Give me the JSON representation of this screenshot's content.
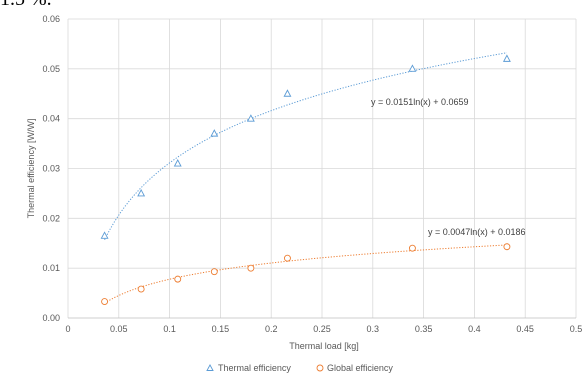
{
  "caption_fragment": "1.5 %.",
  "chart_data": {
    "type": "scatter",
    "title": "",
    "xlabel": "Thermal load [kg]",
    "ylabel": "Thermal efficiency [W/W]",
    "xlim": [
      0,
      0.5
    ],
    "ylim": [
      0,
      0.06
    ],
    "x_ticks": [
      "0",
      "0.05",
      "0.1",
      "0.15",
      "0.2",
      "0.25",
      "0.3",
      "0.35",
      "0.4",
      "0.45",
      "0.5"
    ],
    "y_ticks": [
      "0.00",
      "0.01",
      "0.02",
      "0.03",
      "0.04",
      "0.05",
      "0.06"
    ],
    "grid": true,
    "legend_position": "bottom",
    "series": [
      {
        "name": "Thermal efficiency",
        "marker": "triangle",
        "color": "#5B9BD5",
        "x": [
          0.036,
          0.072,
          0.108,
          0.144,
          0.18,
          0.216,
          0.339,
          0.432
        ],
        "y": [
          0.0165,
          0.025,
          0.031,
          0.037,
          0.04,
          0.045,
          0.05,
          0.052
        ],
        "trendline": {
          "type": "log",
          "a": 0.0151,
          "b": 0.0659,
          "x_range": [
            0.036,
            0.432
          ],
          "label": "y = 0.0151ln(x) + 0.0659"
        }
      },
      {
        "name": "Global  efficiency",
        "marker": "circle",
        "color": "#ED7D31",
        "x": [
          0.036,
          0.072,
          0.108,
          0.144,
          0.18,
          0.216,
          0.339,
          0.432
        ],
        "y": [
          0.0033,
          0.0058,
          0.0078,
          0.0093,
          0.01,
          0.012,
          0.014,
          0.0143
        ],
        "trendline": {
          "type": "log",
          "a": 0.0047,
          "b": 0.0186,
          "x_range": [
            0.036,
            0.432
          ],
          "label": "y = 0.0047ln(x) + 0.0186"
        }
      }
    ]
  }
}
